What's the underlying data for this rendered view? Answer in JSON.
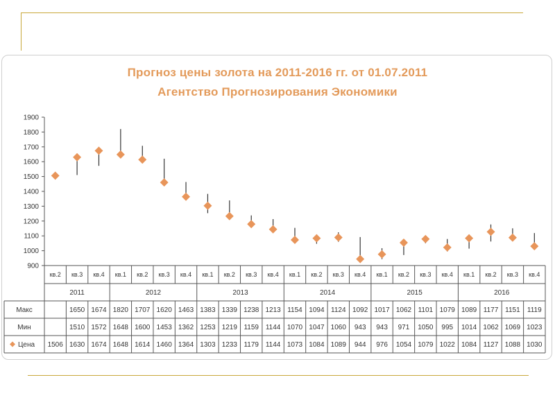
{
  "colors": {
    "accent": "#e8955a",
    "rule": "#c8a83a",
    "error_bar": "#333333",
    "grid": "#555555"
  },
  "chart_data": {
    "type": "scatter",
    "title": "Прогноз цены золота на 2011-2016 гг. от  01.07.2011",
    "subtitle": "Агентство Прогнозирования  Экономики",
    "ylim": [
      900,
      1900
    ],
    "yticks": [
      900,
      1000,
      1100,
      1200,
      1300,
      1400,
      1500,
      1600,
      1700,
      1800,
      1900
    ],
    "grid": false,
    "marker": "diamond",
    "quarters": [
      "кв.2",
      "кв.3",
      "кв.4",
      "кв.1",
      "кв.2",
      "кв.3",
      "кв.4",
      "кв.1",
      "кв.2",
      "кв.3",
      "кв.4",
      "кв.1",
      "кв.2",
      "кв.3",
      "кв.4",
      "кв.1",
      "кв.2",
      "кв.3",
      "кв.4",
      "кв.1",
      "кв.2",
      "кв.3",
      "кв.4"
    ],
    "years": [
      {
        "label": "2011",
        "start": 0,
        "count": 3
      },
      {
        "label": "2012",
        "start": 3,
        "count": 4
      },
      {
        "label": "2013",
        "start": 7,
        "count": 4
      },
      {
        "label": "2014",
        "start": 11,
        "count": 4
      },
      {
        "label": "2015",
        "start": 15,
        "count": 4
      },
      {
        "label": "2016",
        "start": 19,
        "count": 4
      }
    ],
    "series": [
      {
        "name": "Макс",
        "values": [
          null,
          1650,
          1674,
          1820,
          1707,
          1620,
          1463,
          1383,
          1339,
          1238,
          1213,
          1154,
          1094,
          1124,
          1092,
          1017,
          1062,
          1101,
          1079,
          1089,
          1177,
          1151,
          1119
        ]
      },
      {
        "name": "Мин",
        "values": [
          null,
          1510,
          1572,
          1648,
          1600,
          1453,
          1362,
          1253,
          1219,
          1159,
          1144,
          1070,
          1047,
          1060,
          943,
          943,
          971,
          1050,
          995,
          1014,
          1062,
          1069,
          1023
        ]
      },
      {
        "name": "Цена",
        "values": [
          1506,
          1630,
          1674,
          1648,
          1614,
          1460,
          1364,
          1303,
          1233,
          1179,
          1144,
          1073,
          1084,
          1089,
          944,
          976,
          1054,
          1079,
          1022,
          1084,
          1127,
          1088,
          1030
        ]
      }
    ]
  }
}
